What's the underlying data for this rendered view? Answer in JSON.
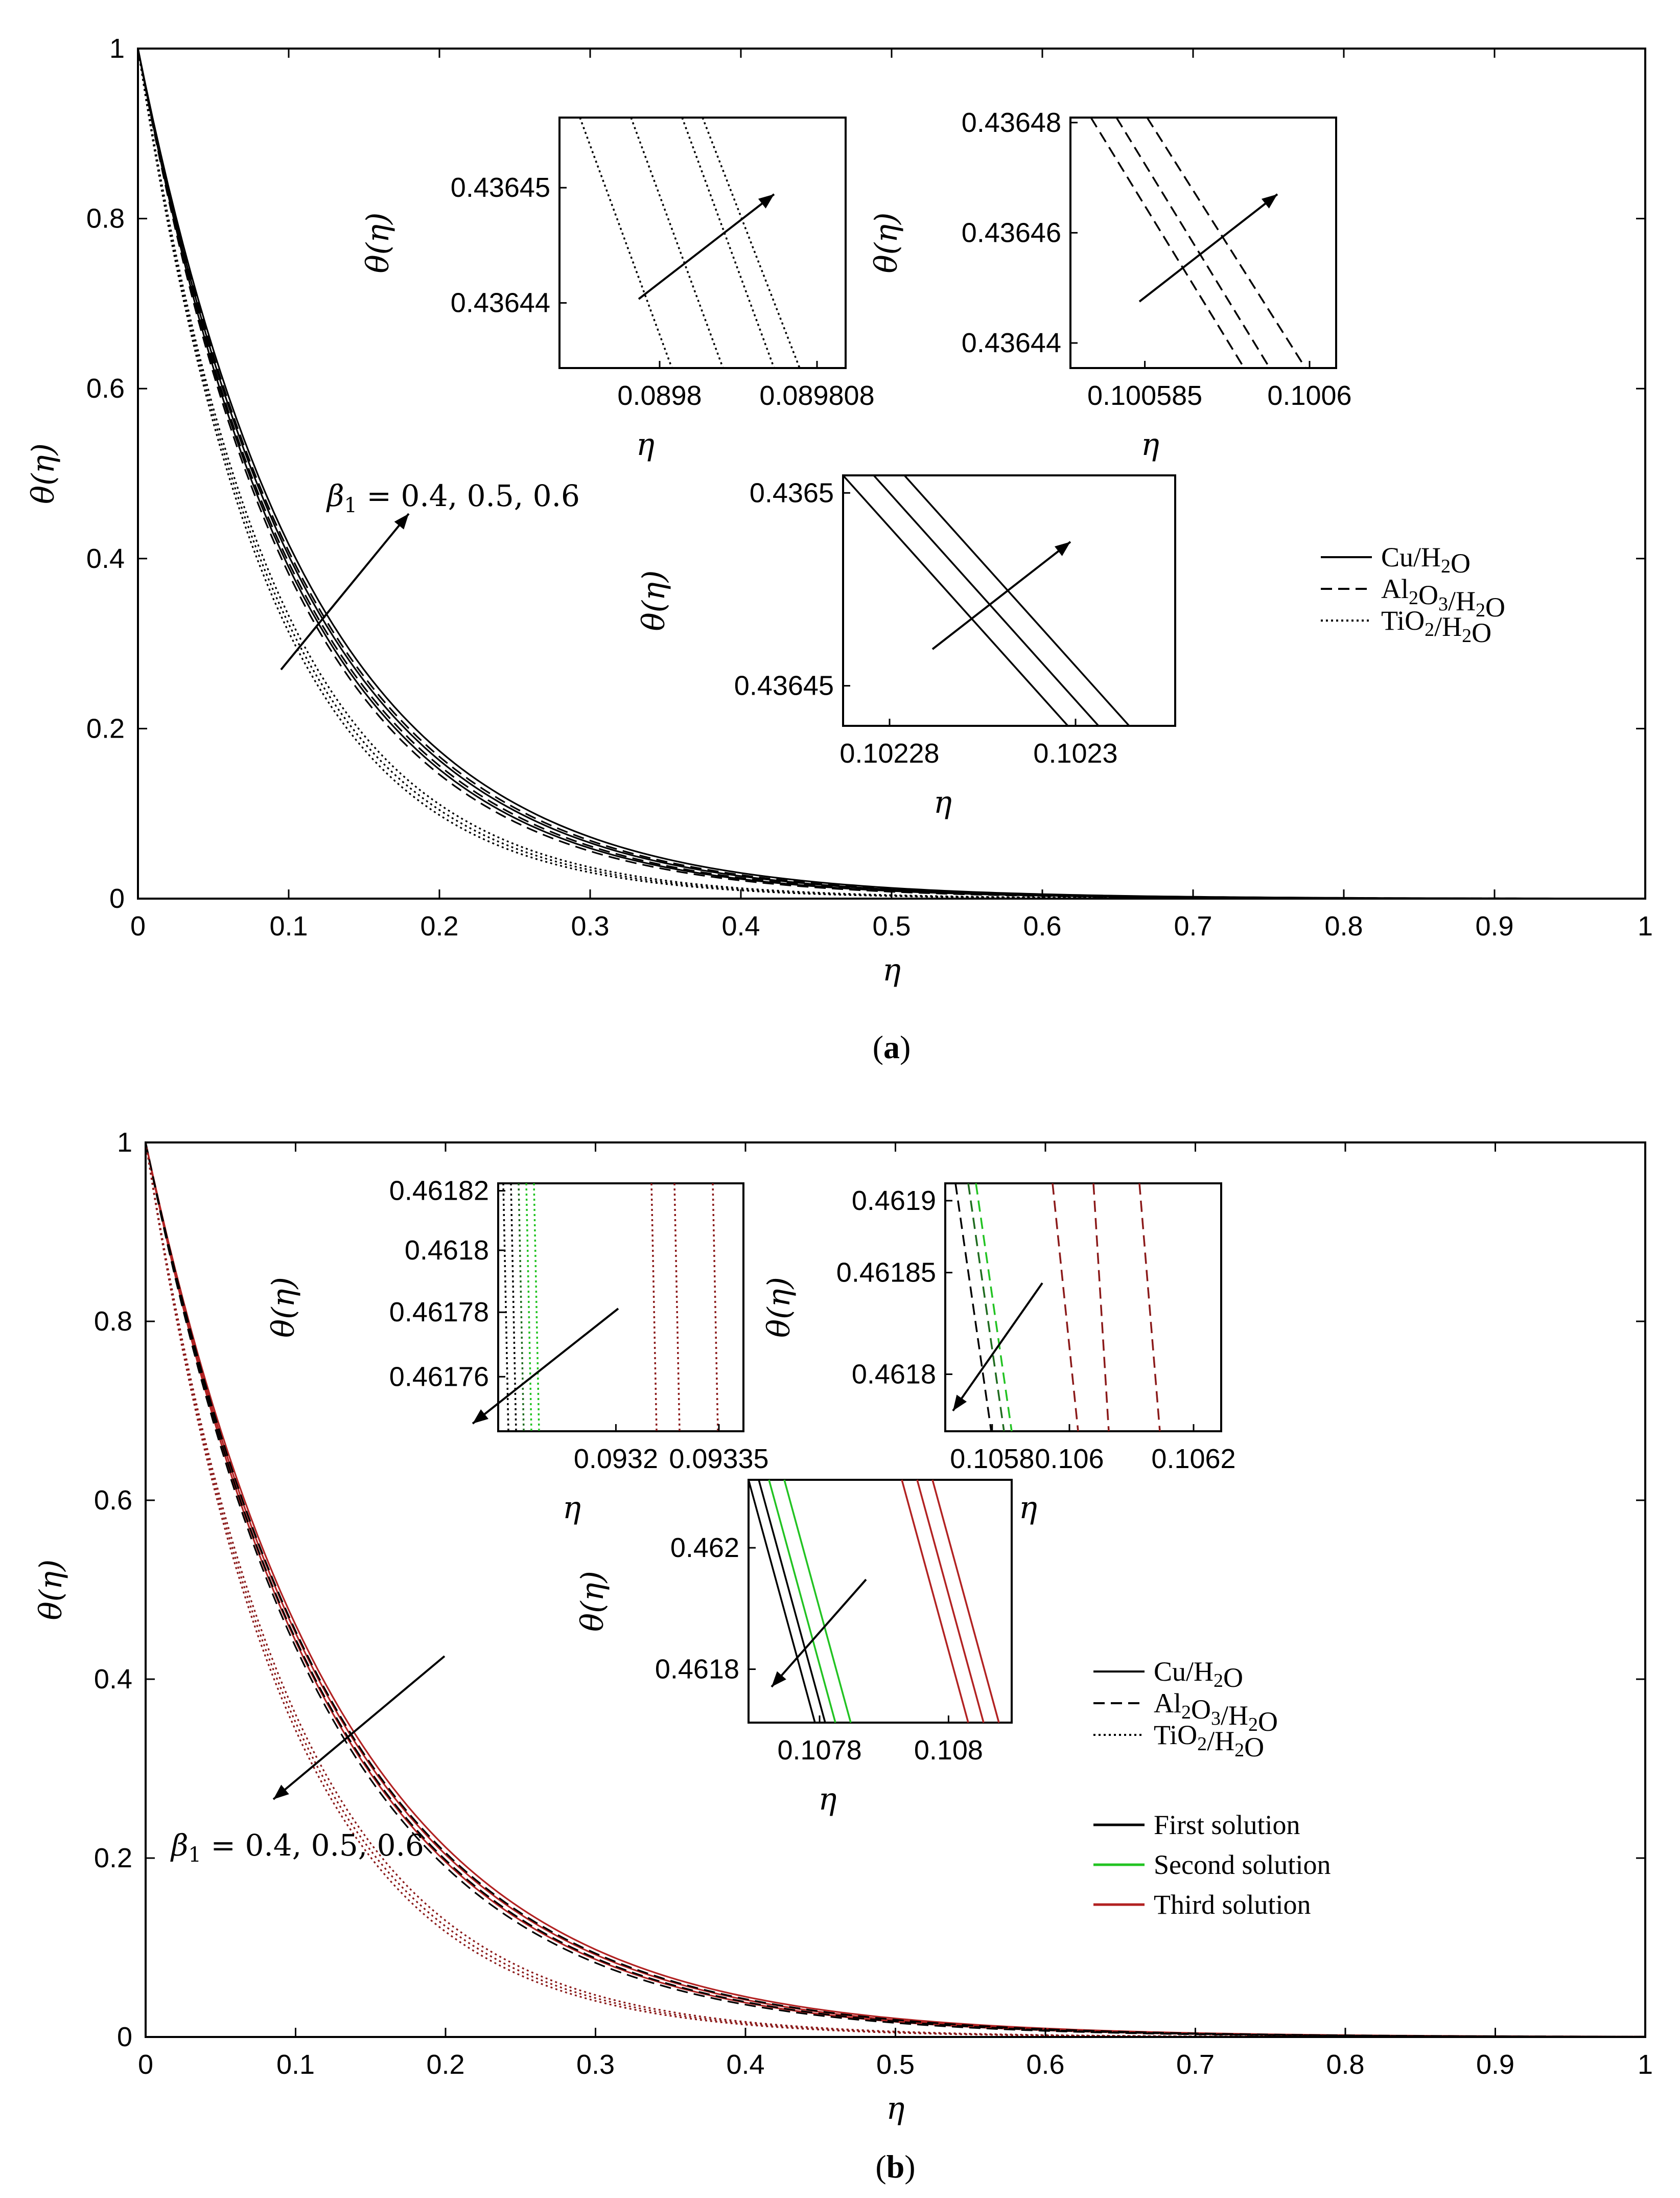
{
  "chart_data": [
    {
      "type": "line",
      "caption": "(a)",
      "xlabel": "η",
      "ylabel": "θ(η)",
      "xlim": [
        0,
        1
      ],
      "ylim": [
        0,
        1
      ],
      "x_ticks": [
        "0",
        "0.1",
        "0.2",
        "0.3",
        "0.4",
        "0.5",
        "0.6",
        "0.7",
        "0.8",
        "0.9",
        "1"
      ],
      "y_ticks": [
        "0",
        "0.2",
        "0.4",
        "0.6",
        "0.8",
        "1"
      ],
      "annotation": "β1 = 0.4, 0.5, 0.6",
      "legend": [
        {
          "label": "Cu/H2O",
          "style": "solid"
        },
        {
          "label": "Al2O3/H2O",
          "style": "dashed"
        },
        {
          "label": "TiO2/H2O",
          "style": "dotted"
        }
      ],
      "series": [
        {
          "name": "Cu/H2O",
          "style": "solid",
          "color": "#000000",
          "decay": [
            9.42,
            9.08,
            8.75
          ]
        },
        {
          "name": "Al2O3/H2O",
          "style": "dashed",
          "color": "#000000",
          "decay": [
            9.62,
            9.28,
            8.95
          ]
        },
        {
          "name": "TiO2/H2O",
          "style": "dotted",
          "color": "#000000",
          "decay": [
            11.6,
            11.3,
            11.0
          ]
        }
      ],
      "insets": [
        {
          "xlabel": "η",
          "ylabel": "θ(η)",
          "x_ticks": [
            "0.0898",
            "0.089808"
          ],
          "y_ticks": [
            "0.43645",
            "0.43644"
          ],
          "style": "dotted"
        },
        {
          "xlabel": "η",
          "ylabel": "θ(η)",
          "x_ticks": [
            "0.100585",
            "0.1006"
          ],
          "y_ticks": [
            "0.43648",
            "0.43646",
            "0.43644"
          ],
          "style": "dashed"
        },
        {
          "xlabel": "η",
          "ylabel": "θ(η)",
          "x_ticks": [
            "0.10228",
            "0.1023"
          ],
          "y_ticks": [
            "0.4365",
            "0.43645"
          ],
          "style": "solid"
        }
      ]
    },
    {
      "type": "line",
      "caption": "(b)",
      "xlabel": "η",
      "ylabel": "θ(η)",
      "xlim": [
        0,
        1
      ],
      "ylim": [
        0,
        1
      ],
      "x_ticks": [
        "0",
        "0.1",
        "0.2",
        "0.3",
        "0.4",
        "0.5",
        "0.6",
        "0.7",
        "0.8",
        "0.9",
        "1"
      ],
      "y_ticks": [
        "0",
        "0.2",
        "0.4",
        "0.6",
        "0.8",
        "1"
      ],
      "annotation": "β1 = 0.4, 0.5, 0.6",
      "legend": [
        {
          "label": "Cu/H2O",
          "style": "solid"
        },
        {
          "label": "Al2O3/H2O",
          "style": "dashed"
        },
        {
          "label": "TiO2/H2O",
          "style": "dotted"
        }
      ],
      "legend_solutions": [
        {
          "label": "First solution",
          "color": "#000000"
        },
        {
          "label": "Second solution",
          "color": "#22c322"
        },
        {
          "label": "Third solution",
          "color": "#b22222"
        }
      ],
      "series": [
        {
          "name": "Cu/H2O",
          "style": "solid",
          "color": "#b22222",
          "decay": [
            7.75,
            7.95,
            8.15
          ]
        },
        {
          "name": "Al2O3/H2O",
          "style": "dashed",
          "color": "#000000",
          "decay": [
            7.9,
            8.1,
            8.3
          ]
        },
        {
          "name": "TiO2/H2O",
          "style": "dotted",
          "color": "#8b1a1a",
          "decay": [
            10.2,
            10.45,
            10.7
          ]
        }
      ],
      "insets": [
        {
          "xlabel": "η",
          "ylabel": "θ(η)",
          "x_ticks": [
            "0.0932",
            "0.09335"
          ],
          "y_ticks": [
            "0.46182",
            "0.4618",
            "0.46178",
            "0.46176"
          ],
          "style": "dotted"
        },
        {
          "xlabel": "η",
          "ylabel": "θ(η)",
          "x_ticks": [
            "0.1058",
            "0.106",
            "0.1062"
          ],
          "y_ticks": [
            "0.4619",
            "0.46185",
            "0.4618"
          ],
          "style": "dashed"
        },
        {
          "xlabel": "η",
          "ylabel": "θ(η)",
          "x_ticks": [
            "0.1078",
            "0.108"
          ],
          "y_ticks": [
            "0.462",
            "0.4618"
          ],
          "style": "solid"
        }
      ]
    }
  ]
}
